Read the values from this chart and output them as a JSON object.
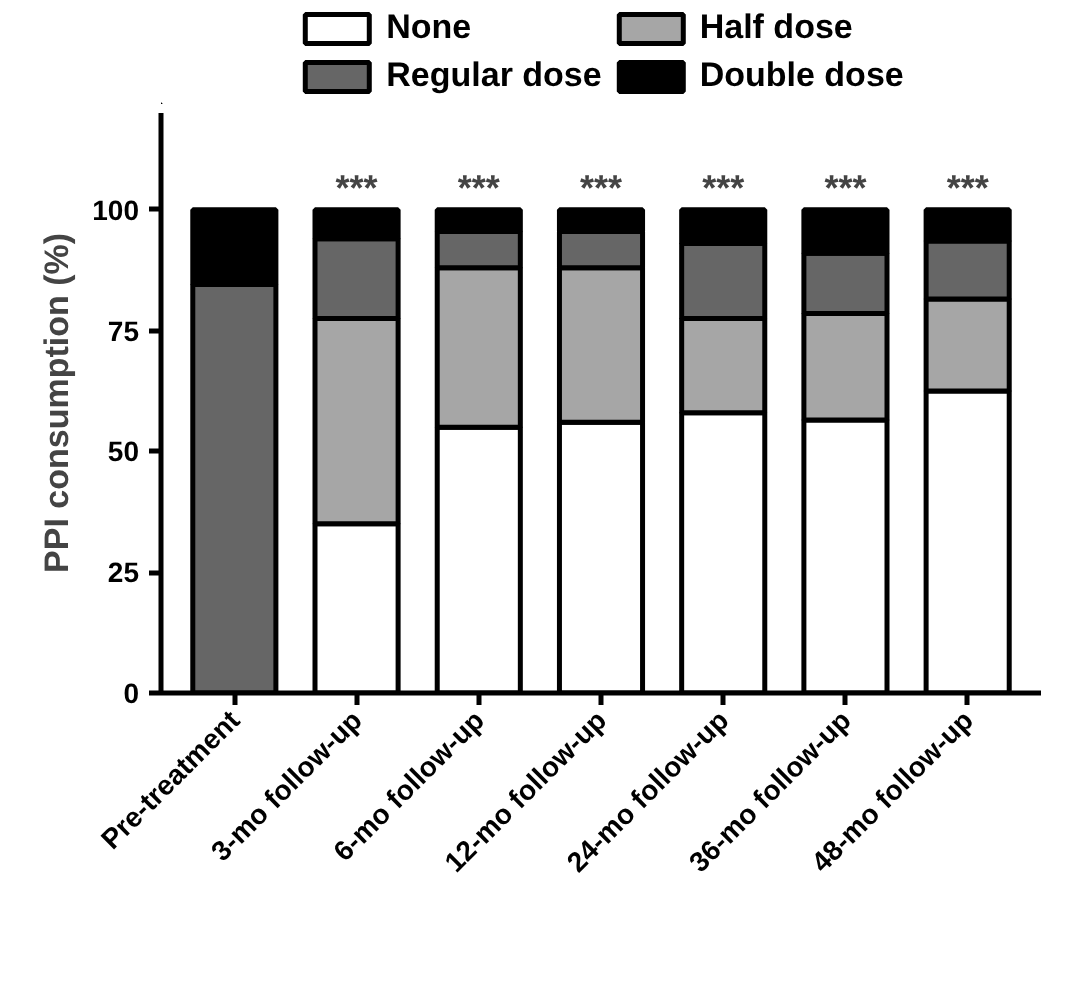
{
  "chart_data": {
    "type": "bar",
    "stacked": true,
    "ylabel": "PPI consumption (%)",
    "categories": [
      "Pre-treatment",
      "3-mo follow-up",
      "6-mo follow-up",
      "12-mo follow-up",
      "24-mo follow-up",
      "36-mo follow-up",
      "48-mo follow-up"
    ],
    "series": [
      {
        "name": "None",
        "color": "#ffffff",
        "values": [
          0,
          35,
          55,
          56,
          58,
          56.5,
          62.5
        ]
      },
      {
        "name": "Half dose",
        "color": "#a6a6a6",
        "values": [
          0,
          42.5,
          33,
          32,
          19.5,
          22,
          19
        ]
      },
      {
        "name": "Regular dose",
        "color": "#666666",
        "values": [
          84.5,
          16.5,
          7.5,
          7.5,
          15.5,
          12.5,
          12
        ]
      },
      {
        "name": "Double dose",
        "color": "#000000",
        "values": [
          15.5,
          6,
          4.5,
          4.5,
          7,
          9,
          6.5
        ]
      }
    ],
    "annotations": [
      {
        "text": "***",
        "x": "3-mo follow-up",
        "y": 100
      },
      {
        "text": "***",
        "x": "6-mo follow-up",
        "y": 100
      },
      {
        "text": "***",
        "x": "12-mo follow-up",
        "y": 100
      },
      {
        "text": "***",
        "x": "24-mo follow-up",
        "y": 100
      },
      {
        "text": "***",
        "x": "36-mo follow-up",
        "y": 100
      },
      {
        "text": "***",
        "x": "48-mo follow-up",
        "y": 100
      }
    ],
    "ylim": [
      0,
      120
    ],
    "yticks": [
      0,
      25,
      50,
      75,
      100
    ],
    "grid": false,
    "legend": "top"
  }
}
